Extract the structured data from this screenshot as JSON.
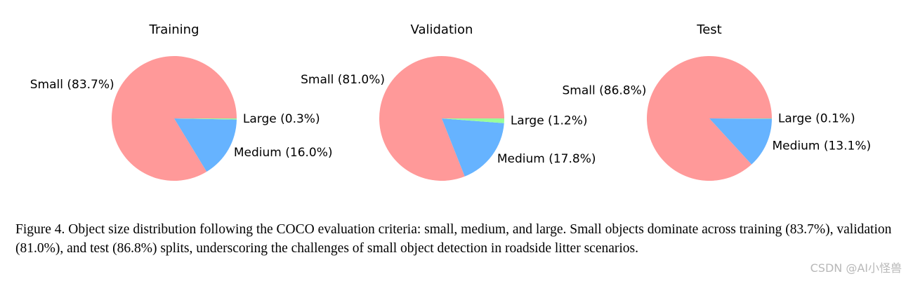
{
  "chart_data": [
    {
      "type": "pie",
      "title": "Training",
      "slices": [
        {
          "label": "Small",
          "value": 83.7,
          "color": "#ff9999"
        },
        {
          "label": "Medium",
          "value": 16.0,
          "color": "#66b3ff"
        },
        {
          "label": "Large",
          "value": 0.3,
          "color": "#99ff99"
        }
      ]
    },
    {
      "type": "pie",
      "title": "Validation",
      "slices": [
        {
          "label": "Small",
          "value": 81.0,
          "color": "#ff9999"
        },
        {
          "label": "Medium",
          "value": 17.8,
          "color": "#66b3ff"
        },
        {
          "label": "Large",
          "value": 1.2,
          "color": "#99ff99"
        }
      ]
    },
    {
      "type": "pie",
      "title": "Test",
      "slices": [
        {
          "label": "Small",
          "value": 86.8,
          "color": "#ff9999"
        },
        {
          "label": "Medium",
          "value": 13.1,
          "color": "#66b3ff"
        },
        {
          "label": "Large",
          "value": 0.1,
          "color": "#99ff99"
        }
      ]
    }
  ],
  "caption": "Figure 4. Object size distribution following the COCO evaluation criteria: small, medium, and large. Small objects dominate across training (83.7%), validation (81.0%), and test (86.8%) splits, underscoring the challenges of small object detection in roadside litter scenarios.",
  "watermark": "CSDN @AI小怪兽"
}
